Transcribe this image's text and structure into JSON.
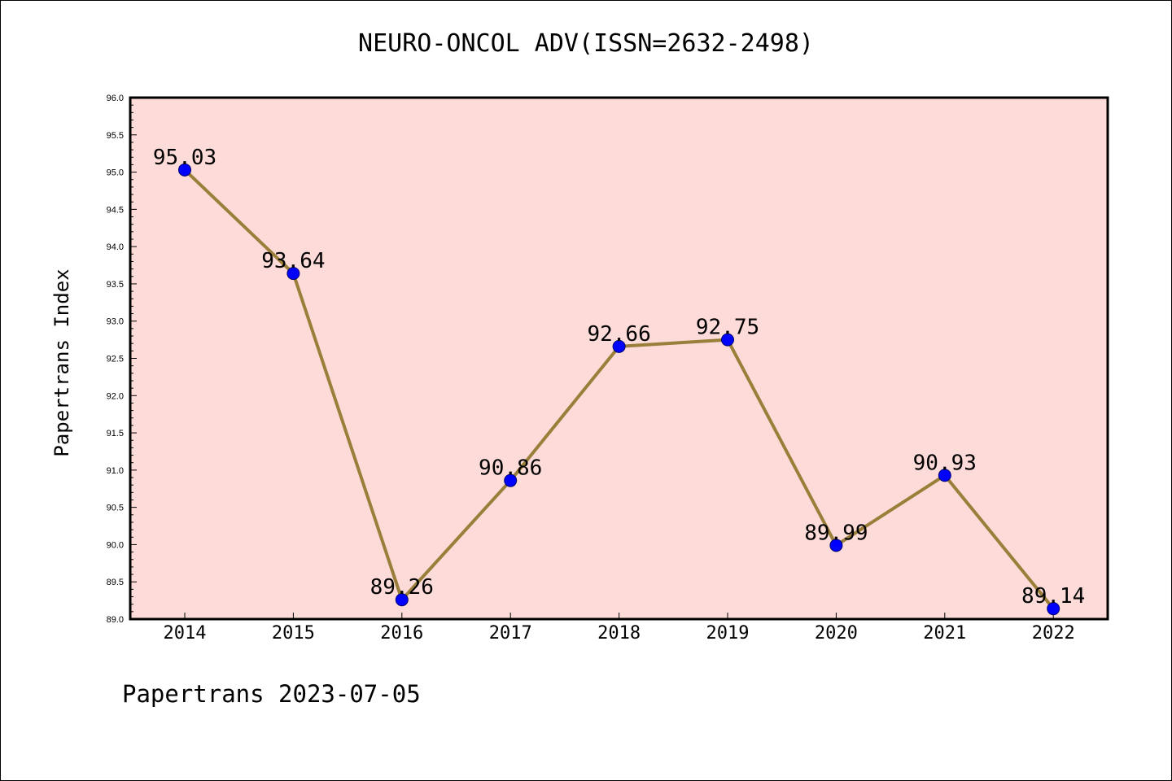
{
  "chart_data": {
    "type": "line",
    "title": "NEURO-ONCOL ADV(ISSN=2632-2498)",
    "xlabel": "",
    "ylabel": "Papertrans Index",
    "x": [
      "2014",
      "2015",
      "2016",
      "2017",
      "2018",
      "2019",
      "2020",
      "2021",
      "2022"
    ],
    "values": [
      95.03,
      93.64,
      89.26,
      90.86,
      92.66,
      92.75,
      89.99,
      90.93,
      89.14
    ],
    "data_labels": [
      "95.03",
      "93.64",
      "89.26",
      "90.86",
      "92.66",
      "92.75",
      "89.99",
      "90.93",
      "89.14"
    ],
    "ylim": [
      89.0,
      96.0
    ],
    "yticks": [
      "89.0",
      "89.5",
      "90.0",
      "90.5",
      "91.0",
      "91.5",
      "92.0",
      "92.5",
      "93.0",
      "93.5",
      "94.0",
      "94.5",
      "95.0",
      "95.5",
      "96.0"
    ],
    "grid": false,
    "colors": {
      "plot_background": "#FDDBD8",
      "line": "#9A7F3A",
      "marker": "#0000FF"
    }
  },
  "footer": "Papertrans 2023-07-05"
}
